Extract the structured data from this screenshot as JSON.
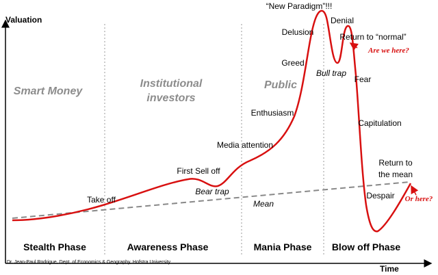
{
  "axes": {
    "y_label": "Valuation",
    "x_label": "Time"
  },
  "regions": [
    {
      "label": [
        "Smart Money"
      ],
      "phase": "Stealth Phase"
    },
    {
      "label": [
        "Institutional",
        "investors"
      ],
      "phase": "Awareness Phase"
    },
    {
      "label": [
        "Public"
      ],
      "phase": "Mania Phase"
    },
    {
      "label": [],
      "phase": "Blow off Phase"
    }
  ],
  "annotations": {
    "take_off": "Take off",
    "first_sell_off": "First Sell off",
    "bear_trap": "Bear trap",
    "mean": "Mean",
    "media_attention": "Media attention",
    "enthusiasm": "Enthusiasm",
    "greed": "Greed",
    "delusion": "Delusion",
    "new_paradigm": "“New Paradigm”!!!",
    "denial": "Denial",
    "bull_trap": "Bull trap",
    "return_to_normal": "Return to “normal”",
    "fear": "Fear",
    "capitulation": "Capitulation",
    "despair": "Despair",
    "return_to_mean": [
      "Return to",
      "the mean"
    ],
    "are_we_here": "Are we here?",
    "or_here": "Or here?"
  },
  "credit": "Dr. Jean-Paul Rodrigue, Dept. of Economics & Geography, Hofstra University"
}
